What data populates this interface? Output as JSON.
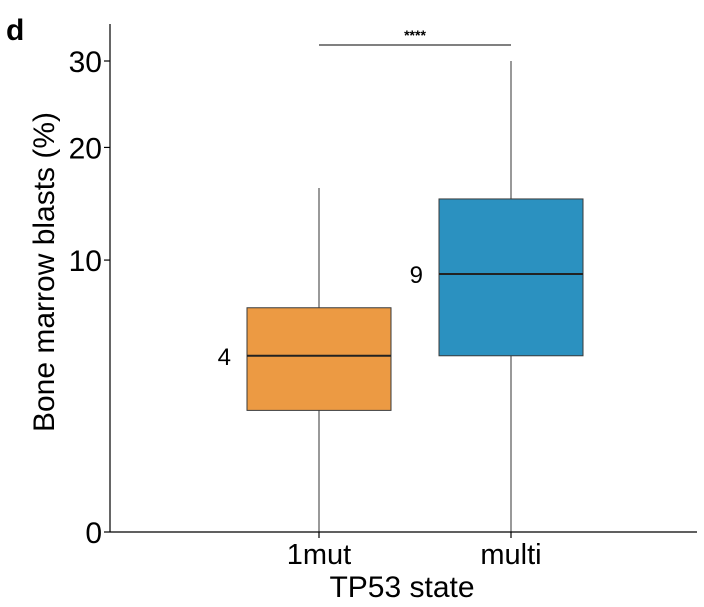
{
  "panel_label": "d",
  "chart_data": {
    "type": "box",
    "xlabel": "TP53 state",
    "ylabel": "Bone marrow blasts (%)",
    "y_ticks": [
      0,
      10,
      20,
      30
    ],
    "y_tick_labels": [
      "0",
      "10",
      "20",
      "30"
    ],
    "y_scale": "sqrt",
    "ylim": [
      0,
      33
    ],
    "grid": false,
    "legend": "none",
    "categories": [
      "1mut",
      "multi"
    ],
    "boxes": [
      {
        "category": "1mut",
        "whisker_low": 0,
        "q1": 2,
        "median": 4.2,
        "q3": 6.8,
        "whisker_high": 16,
        "median_label": "4",
        "color": "#EC9A43"
      },
      {
        "category": "multi",
        "whisker_low": 0,
        "q1": 4.2,
        "median": 9,
        "q3": 15,
        "whisker_high": 30,
        "median_label": "9",
        "color": "#2B91C0"
      }
    ],
    "significance": {
      "from": "1mut",
      "to": "multi",
      "label": "****"
    }
  }
}
